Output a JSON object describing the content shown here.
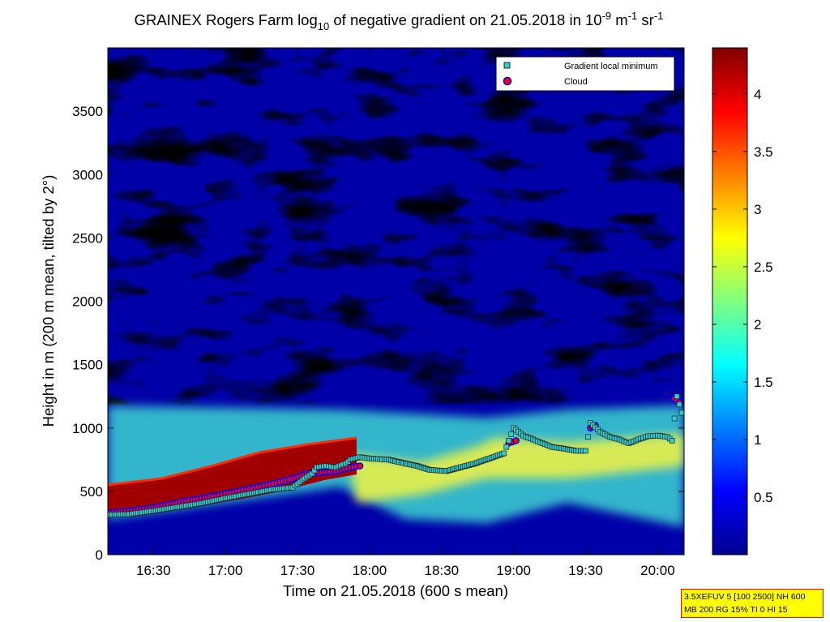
{
  "chart_data": {
    "type": "heatmap",
    "title": {
      "prefix": "GRAINEX Rogers Farm log",
      "sub": "10",
      "middle": " of negative gradient on 21.05.2018 in 10",
      "sup1": "-9",
      "mid2": " m",
      "sup2": "-1",
      "mid3": " sr",
      "sup3": "-1"
    },
    "xlabel": "Time on 21.05.2018 (600 s mean)",
    "ylabel": "Height in m (200 m mean, tilted by 2°)",
    "x_ticks": [
      "16:30",
      "17:00",
      "17:30",
      "18:00",
      "18:30",
      "19:00",
      "19:30",
      "20:00"
    ],
    "x_tick_minutes": [
      990,
      1020,
      1050,
      1080,
      1110,
      1140,
      1170,
      1200
    ],
    "xlim_minutes": [
      971,
      1211
    ],
    "y_ticks": [
      "0",
      "500",
      "1000",
      "1500",
      "2000",
      "2500",
      "3000",
      "3500"
    ],
    "y_tick_values": [
      0,
      500,
      1000,
      1500,
      2000,
      2500,
      3000,
      3500
    ],
    "ylim": [
      0,
      4000
    ],
    "colorbar": {
      "colormap": "jet",
      "range": [
        0,
        4.4
      ],
      "ticks": [
        "0.5",
        "1",
        "1.5",
        "2",
        "2.5",
        "3",
        "3.5",
        "4"
      ],
      "tick_values": [
        0.5,
        1,
        1.5,
        2,
        2.5,
        3,
        3.5,
        4
      ]
    },
    "legend": {
      "placement": "top-right",
      "entries": [
        {
          "label": "Gradient local minimum",
          "marker": "square",
          "color": "#33cccc"
        },
        {
          "label": "Cloud",
          "marker": "circle",
          "color": "#ff0000"
        }
      ]
    },
    "series": [
      {
        "name": "Gradient local minimum",
        "points": [
          [
            972,
            315
          ],
          [
            980,
            320
          ],
          [
            990,
            345
          ],
          [
            1000,
            375
          ],
          [
            1010,
            405
          ],
          [
            1020,
            445
          ],
          [
            1030,
            480
          ],
          [
            1040,
            515
          ],
          [
            1048,
            530
          ],
          [
            1052,
            590
          ],
          [
            1056,
            640
          ],
          [
            1058,
            690
          ],
          [
            1062,
            700
          ],
          [
            1066,
            690
          ],
          [
            1070,
            720
          ],
          [
            1072,
            750
          ],
          [
            1076,
            770
          ],
          [
            1080,
            760
          ],
          [
            1088,
            750
          ],
          [
            1095,
            720
          ],
          [
            1100,
            700
          ],
          [
            1105,
            670
          ],
          [
            1112,
            660
          ],
          [
            1118,
            690
          ],
          [
            1124,
            720
          ],
          [
            1130,
            760
          ],
          [
            1136,
            800
          ],
          [
            1140,
            1000
          ],
          [
            1144,
            940
          ],
          [
            1148,
            910
          ],
          [
            1152,
            880
          ],
          [
            1156,
            850
          ],
          [
            1160,
            840
          ],
          [
            1166,
            820
          ],
          [
            1170,
            820
          ],
          [
            1172,
            1040
          ],
          [
            1176,
            970
          ],
          [
            1180,
            930
          ],
          [
            1184,
            910
          ],
          [
            1188,
            880
          ],
          [
            1192,
            910
          ],
          [
            1196,
            935
          ],
          [
            1200,
            940
          ],
          [
            1204,
            930
          ],
          [
            1206,
            900
          ],
          [
            1208,
            1250
          ],
          [
            1210,
            1120
          ]
        ]
      },
      {
        "name": "Cloud",
        "points": [
          [
            972,
            330
          ],
          [
            980,
            345
          ],
          [
            990,
            370
          ],
          [
            1000,
            410
          ],
          [
            1010,
            445
          ],
          [
            1020,
            480
          ],
          [
            1030,
            520
          ],
          [
            1040,
            560
          ],
          [
            1048,
            600
          ],
          [
            1054,
            640
          ],
          [
            1060,
            650
          ],
          [
            1066,
            660
          ],
          [
            1072,
            690
          ],
          [
            1076,
            700
          ],
          [
            1138,
            880
          ],
          [
            1141,
            900
          ],
          [
            1172,
            1000
          ],
          [
            1174,
            1020
          ],
          [
            1207,
            1230
          ],
          [
            1209,
            1200
          ]
        ]
      }
    ]
  },
  "stamp": {
    "line1": "3.5XEFUV 5 [100 2500] NH 600",
    "line2": "MB 200 RG 15% TI 0 HI 15"
  }
}
